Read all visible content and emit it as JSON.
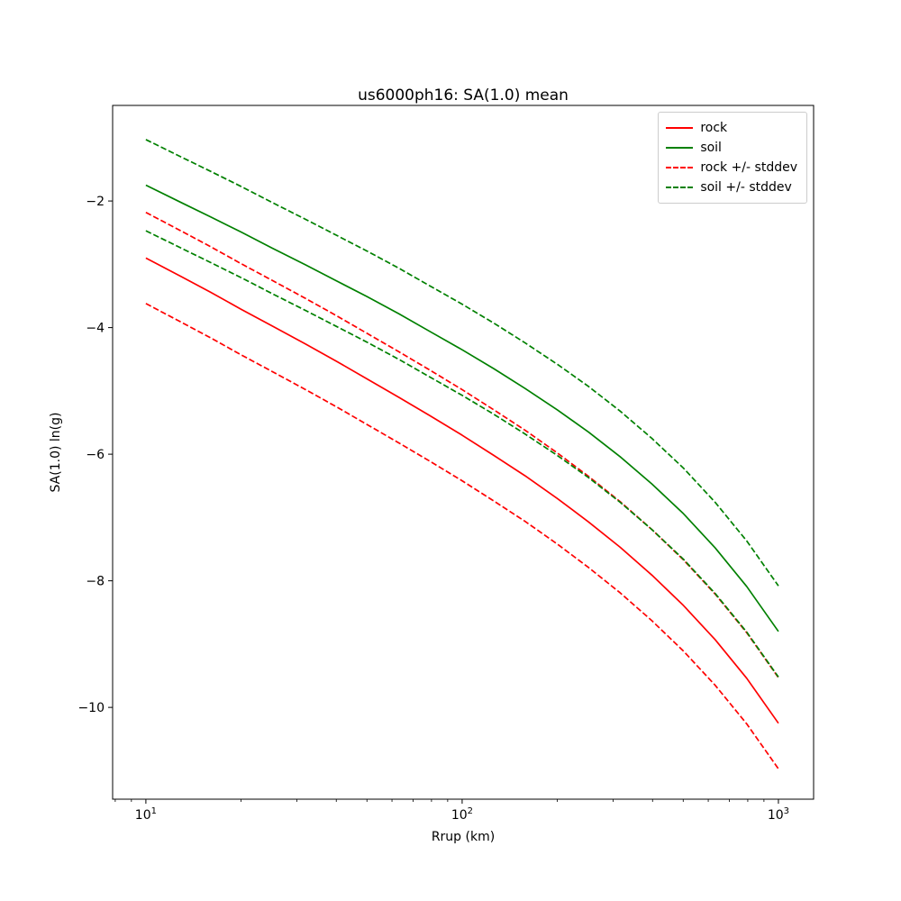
{
  "figure": {
    "background": "#ffffff",
    "spine_color": "#000000"
  },
  "chart_data": {
    "type": "line",
    "title": "us6000ph16: SA(1.0) mean",
    "xlabel": "Rrup (km)",
    "ylabel": "SA(1.0) ln(g)",
    "xscale": "log",
    "yscale": "linear",
    "grid": false,
    "legend_position": "upper right",
    "xlim": [
      7.85,
      1292
    ],
    "ylim": [
      -11.45,
      -0.49
    ],
    "xticks": [
      {
        "v": 10,
        "base": "10",
        "exp": "1"
      },
      {
        "v": 100,
        "base": "10",
        "exp": "2"
      },
      {
        "v": 1000,
        "base": "10",
        "exp": "3"
      }
    ],
    "xminorticks": [
      8,
      9,
      20,
      30,
      40,
      50,
      60,
      70,
      80,
      90,
      200,
      300,
      400,
      500,
      600,
      700,
      800,
      900
    ],
    "yticks": [
      {
        "v": -2,
        "label": "−2"
      },
      {
        "v": -4,
        "label": "−4"
      },
      {
        "v": -6,
        "label": "−6"
      },
      {
        "v": -8,
        "label": "−8"
      },
      {
        "v": -10,
        "label": "−10"
      }
    ],
    "x": [
      10,
      13,
      16,
      20,
      25,
      32,
      40,
      50,
      63,
      79,
      100,
      126,
      158,
      200,
      251,
      316,
      398,
      501,
      631,
      794,
      1000
    ],
    "series": [
      {
        "name": "rock",
        "color": "#ff0000",
        "style": "solid",
        "values": [
          -2.9,
          -3.2,
          -3.44,
          -3.71,
          -3.97,
          -4.26,
          -4.53,
          -4.81,
          -5.1,
          -5.39,
          -5.7,
          -6.02,
          -6.34,
          -6.7,
          -7.07,
          -7.47,
          -7.91,
          -8.39,
          -8.93,
          -9.54,
          -10.25
        ]
      },
      {
        "name": "soil",
        "color": "#008000",
        "style": "solid",
        "values": [
          -1.75,
          -2.03,
          -2.25,
          -2.49,
          -2.74,
          -3.01,
          -3.26,
          -3.51,
          -3.78,
          -4.06,
          -4.35,
          -4.65,
          -4.96,
          -5.3,
          -5.65,
          -6.04,
          -6.47,
          -6.94,
          -7.48,
          -8.09,
          -8.8
        ]
      },
      {
        "name": "rock +/- stddev",
        "color": "#ff0000",
        "style": "dashed",
        "base": "rock",
        "stddev": 0.72
      },
      {
        "name": "soil +/- stddev",
        "color": "#008000",
        "style": "dashed",
        "base": "soil",
        "stddev": 0.72
      }
    ]
  }
}
